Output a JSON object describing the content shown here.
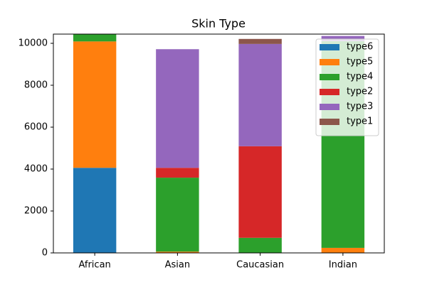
{
  "chart_data": {
    "type": "stacked-bar",
    "title": "Skin Type",
    "categories": [
      "African",
      "Asian",
      "Caucasian",
      "Indian"
    ],
    "series": [
      {
        "name": "type6",
        "color": "#1f77b4",
        "values": [
          4060,
          0,
          0,
          0
        ]
      },
      {
        "name": "type5",
        "color": "#ff7f0e",
        "values": [
          6030,
          60,
          0,
          240
        ]
      },
      {
        "name": "type4",
        "color": "#2ca02c",
        "values": [
          400,
          3530,
          720,
          9860
        ]
      },
      {
        "name": "type2",
        "color": "#d62728",
        "values": [
          0,
          470,
          4370,
          0
        ]
      },
      {
        "name": "type3",
        "color": "#9467bd",
        "values": [
          0,
          5660,
          4880,
          250
        ]
      },
      {
        "name": "type1",
        "color": "#8c564b",
        "values": [
          0,
          0,
          240,
          0
        ]
      }
    ],
    "ylim": [
      0,
      10440
    ],
    "yticks": [
      0,
      2000,
      4000,
      6000,
      8000,
      10000
    ],
    "legend": "upper right"
  }
}
